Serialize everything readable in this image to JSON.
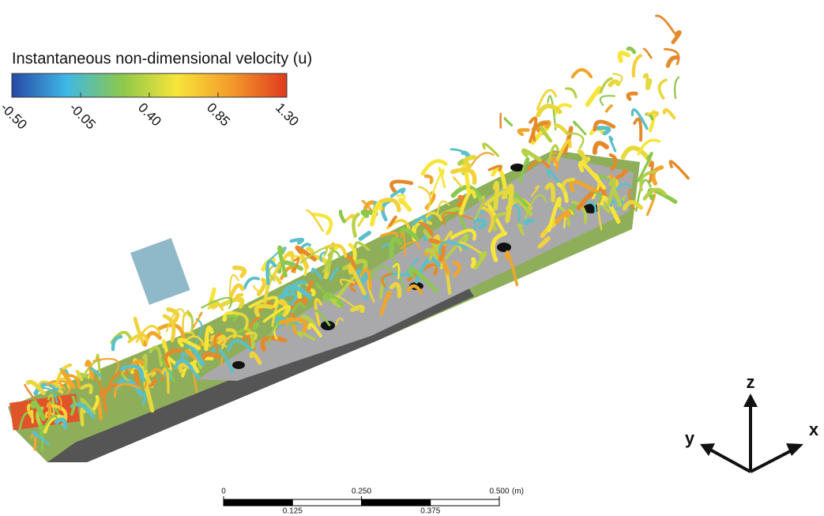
{
  "colorbar": {
    "title": "Instantaneous non-dimensional velocity (u)",
    "range": [
      -0.5,
      1.3
    ],
    "colors": [
      "#2748a6",
      "#3fb8e6",
      "#8cc84b",
      "#f7e53a",
      "#f39a2a",
      "#e03a1f"
    ],
    "ticks": [
      {
        "value": -0.5,
        "label": "-0.50"
      },
      {
        "value": -0.05,
        "label": "-0.05"
      },
      {
        "value": 0.4,
        "label": "0.40"
      },
      {
        "value": 0.85,
        "label": "0.85"
      },
      {
        "value": 1.3,
        "label": "1.30"
      }
    ]
  },
  "scale_bar": {
    "unit": "(m)",
    "range": [
      0,
      0.5
    ],
    "top_ticks": [
      0,
      {
        "value": 0.25,
        "label": "0.250"
      },
      {
        "value": 0.5,
        "label": "0.500"
      }
    ],
    "bottom_ticks": [
      0.125,
      0.375
    ]
  },
  "axes": {
    "x": "x",
    "y": "y",
    "z": "z"
  }
}
